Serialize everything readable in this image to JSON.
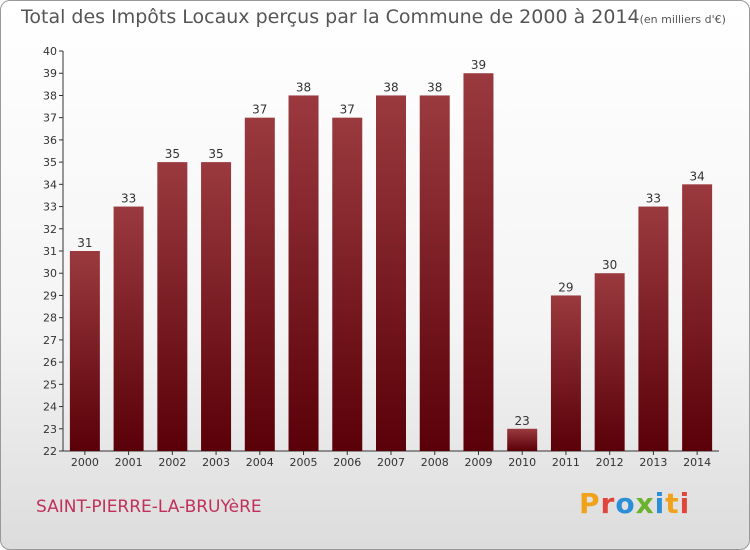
{
  "title": "Total des Impôts Locaux perçus par la Commune de 2000 à 2014",
  "unit": "(en milliers d'€)",
  "commune": "SAINT-PIERRE-LA-BRUYèRE",
  "logo": "Proxiti",
  "colors": {
    "bar_top": "#9a3a3f",
    "bar_bottom": "#5a0008",
    "axis": "#333333"
  },
  "chart_data": {
    "type": "bar",
    "categories": [
      "2000",
      "2001",
      "2002",
      "2003",
      "2004",
      "2005",
      "2006",
      "2007",
      "2008",
      "2009",
      "2010",
      "2011",
      "2012",
      "2013",
      "2014"
    ],
    "values": [
      31,
      33,
      35,
      35,
      37,
      38,
      37,
      38,
      38,
      39,
      23,
      29,
      30,
      33,
      34
    ],
    "ylim": [
      22,
      40
    ],
    "yticks": [
      22,
      23,
      24,
      25,
      26,
      27,
      28,
      29,
      30,
      31,
      32,
      33,
      34,
      35,
      36,
      37,
      38,
      39,
      40
    ],
    "grid": false,
    "xlabel": "",
    "ylabel": ""
  }
}
